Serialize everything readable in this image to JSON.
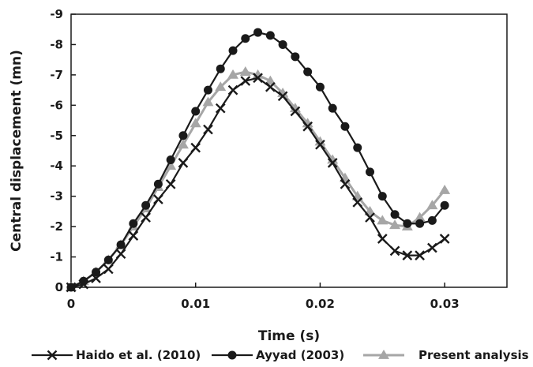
{
  "chart_data": {
    "type": "line",
    "xlabel": "Time (s)",
    "ylabel": "Central displacement (mn)",
    "xlim": [
      0,
      0.035
    ],
    "ylim": [
      0,
      -9
    ],
    "y_axis_inverted": true,
    "x_ticks": [
      0,
      0.01,
      0.02,
      0.03
    ],
    "x_tick_labels": [
      "0",
      "0.01",
      "0.02",
      "0.03"
    ],
    "y_ticks": [
      0,
      -1,
      -2,
      -3,
      -4,
      -5,
      -6,
      -7,
      -8,
      -9
    ],
    "y_tick_labels": [
      "0",
      "-1",
      "-2",
      "-3",
      "-4",
      "-5",
      "-6",
      "-7",
      "-8",
      "-9"
    ],
    "grid": false,
    "legend_position": "bottom",
    "series": [
      {
        "name": "Haido et al. (2010)",
        "marker": "x",
        "color": "#1a1a1a",
        "x": [
          0,
          0.001,
          0.002,
          0.003,
          0.004,
          0.005,
          0.006,
          0.007,
          0.008,
          0.009,
          0.01,
          0.011,
          0.012,
          0.013,
          0.014,
          0.015,
          0.016,
          0.017,
          0.018,
          0.019,
          0.02,
          0.021,
          0.022,
          0.023,
          0.024,
          0.025,
          0.026,
          0.027,
          0.028,
          0.029,
          0.03
        ],
        "y": [
          0,
          -0.1,
          -0.3,
          -0.6,
          -1.1,
          -1.7,
          -2.3,
          -2.9,
          -3.4,
          -4.1,
          -4.6,
          -5.2,
          -5.9,
          -6.5,
          -6.8,
          -6.9,
          -6.6,
          -6.3,
          -5.8,
          -5.3,
          -4.7,
          -4.1,
          -3.4,
          -2.8,
          -2.3,
          -1.6,
          -1.2,
          -1.05,
          -1.05,
          -1.3,
          -1.6
        ]
      },
      {
        "name": "Ayyad (2003)",
        "marker": "circle",
        "color": "#1a1a1a",
        "x": [
          0,
          0.001,
          0.002,
          0.003,
          0.004,
          0.005,
          0.006,
          0.007,
          0.008,
          0.009,
          0.01,
          0.011,
          0.012,
          0.013,
          0.014,
          0.015,
          0.016,
          0.017,
          0.018,
          0.019,
          0.02,
          0.021,
          0.022,
          0.023,
          0.024,
          0.025,
          0.026,
          0.027,
          0.028,
          0.029,
          0.03
        ],
        "y": [
          0,
          -0.2,
          -0.5,
          -0.9,
          -1.4,
          -2.1,
          -2.7,
          -3.4,
          -4.2,
          -5.0,
          -5.8,
          -6.5,
          -7.2,
          -7.8,
          -8.2,
          -8.4,
          -8.3,
          -8.0,
          -7.6,
          -7.1,
          -6.6,
          -5.9,
          -5.3,
          -4.6,
          -3.8,
          -3.0,
          -2.4,
          -2.1,
          -2.1,
          -2.2,
          -2.7
        ]
      },
      {
        "name": "Present analysis",
        "marker": "triangle",
        "color": "#a6a6a6",
        "x": [
          0,
          0.001,
          0.002,
          0.003,
          0.004,
          0.005,
          0.006,
          0.007,
          0.008,
          0.009,
          0.01,
          0.011,
          0.012,
          0.013,
          0.014,
          0.015,
          0.016,
          0.017,
          0.018,
          0.019,
          0.02,
          0.021,
          0.022,
          0.023,
          0.024,
          0.025,
          0.026,
          0.027,
          0.028,
          0.029,
          0.03
        ],
        "y": [
          0,
          -0.2,
          -0.5,
          -0.9,
          -1.4,
          -2.0,
          -2.6,
          -3.3,
          -4.0,
          -4.7,
          -5.4,
          -6.1,
          -6.6,
          -7.0,
          -7.1,
          -7.0,
          -6.8,
          -6.4,
          -5.9,
          -5.4,
          -4.8,
          -4.2,
          -3.6,
          -3.0,
          -2.5,
          -2.2,
          -2.05,
          -2.0,
          -2.3,
          -2.7,
          -3.2
        ]
      }
    ]
  }
}
